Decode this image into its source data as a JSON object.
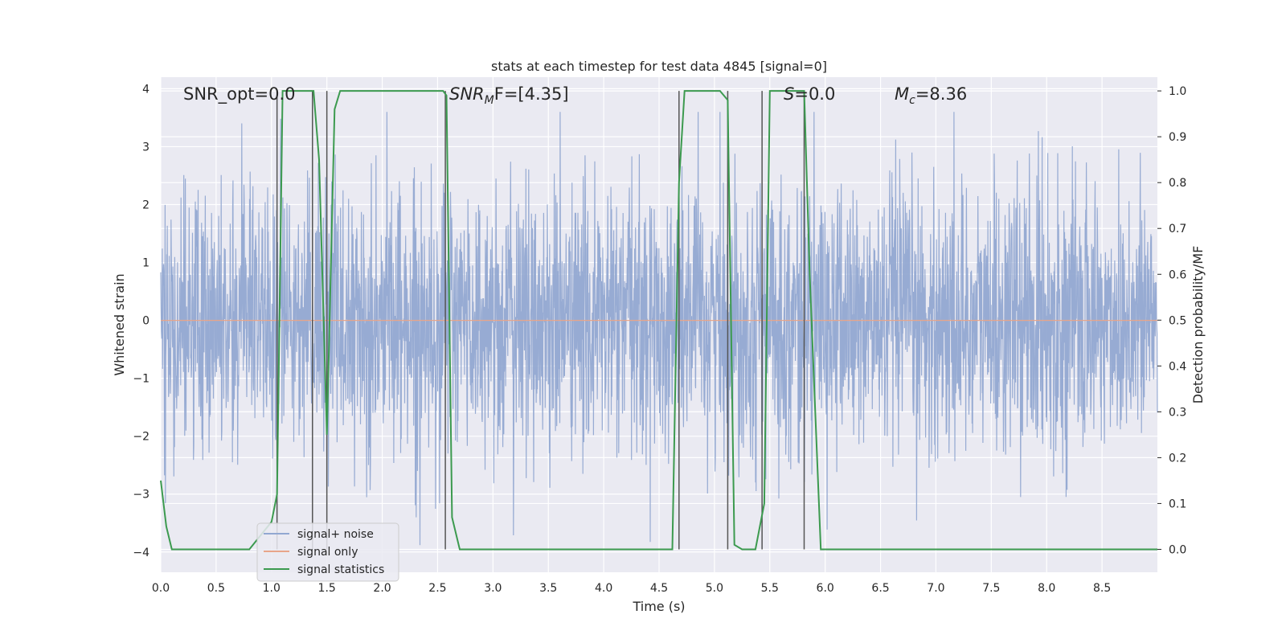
{
  "chart_data": {
    "type": "line",
    "title": "stats at each timestep for test data 4845 [signal=0]",
    "xlabel": "Time (s)",
    "ylabel": "Whitened strain",
    "y2label": "Detection probability/MF",
    "xlim": [
      0,
      9
    ],
    "ylim": [
      -4.35,
      4.2
    ],
    "y2lim": [
      -0.05,
      1.03
    ],
    "xticks": [
      "0.0",
      "0.5",
      "1.0",
      "1.5",
      "2.0",
      "2.5",
      "3.0",
      "3.5",
      "4.0",
      "4.5",
      "5.0",
      "5.5",
      "6.0",
      "6.5",
      "7.0",
      "7.5",
      "8.0",
      "8.5"
    ],
    "yticks": [
      "4",
      "3",
      "2",
      "1",
      "0",
      "−1",
      "−2",
      "−3",
      "−4"
    ],
    "y2ticks": [
      "1.0",
      "0.9",
      "0.8",
      "0.7",
      "0.6",
      "0.5",
      "0.4",
      "0.3",
      "0.2",
      "0.1",
      "0.0"
    ],
    "grid": true,
    "legend_position": "lower-left",
    "annotations": {
      "snr_opt": "SNR_opt=0.0",
      "snr_mf_base": "SNR",
      "snr_mf_sub": "M",
      "snr_mf_rest": "F=[4.35]",
      "s_label": "S",
      "s_rest": "=0.0",
      "mc_base": "M",
      "mc_sub": "c",
      "mc_rest": "=8.36"
    },
    "series": [
      {
        "name": "signal+ noise",
        "color": "#92a8d1",
        "description_values": "dense whitened noise, roughly gaussian, amplitude mostly within ±2.5, peaks near ±3.5",
        "x_range": [
          0,
          9
        ],
        "seed": 4845
      },
      {
        "name": "signal only",
        "color": "#e8a58a",
        "x": [
          0,
          9
        ],
        "values": [
          0,
          0
        ]
      },
      {
        "name": "signal statistics",
        "color": "#3c9a4f",
        "axis": "right",
        "x": [
          0,
          0.05,
          0.1,
          0.8,
          0.9,
          1.0,
          1.05,
          1.1,
          1.15,
          1.38,
          1.43,
          1.5,
          1.57,
          1.62,
          2.55,
          2.58,
          2.63,
          2.7,
          4.62,
          4.68,
          4.73,
          5.05,
          5.12,
          5.18,
          5.25,
          5.37,
          5.45,
          5.5,
          5.81,
          5.86,
          5.96,
          9.0
        ],
        "values": [
          0.15,
          0.05,
          0.0,
          0.0,
          0.03,
          0.06,
          0.12,
          1.0,
          1.0,
          1.0,
          0.85,
          0.25,
          0.96,
          1.0,
          1.0,
          0.99,
          0.07,
          0.0,
          0.0,
          0.8,
          1.0,
          1.0,
          0.98,
          0.01,
          0.0,
          0.0,
          0.1,
          1.0,
          1.0,
          0.6,
          0.0,
          0.0
        ]
      }
    ],
    "vlines": [
      1.05,
      1.37,
      1.5,
      2.57,
      4.68,
      5.12,
      5.43,
      5.81
    ]
  }
}
